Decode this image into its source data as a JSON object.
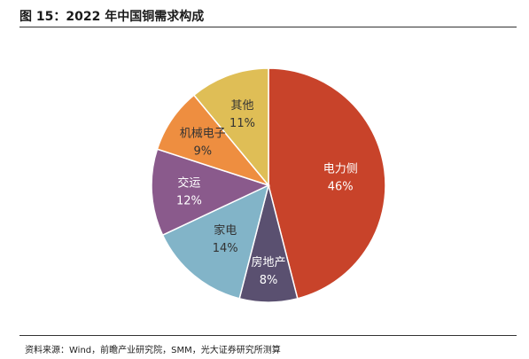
{
  "figure": {
    "title": "图 15：2022 年中国铜需求构成",
    "source": "资料来源：Wind，前瞻产业研究院，SMM，光大证券研究所测算"
  },
  "chart_data": {
    "type": "pie",
    "title": "图 15：2022 年中国铜需求构成",
    "start_angle_deg": 0,
    "direction": "clockwise",
    "slices": [
      {
        "label": "电力侧",
        "value": 46,
        "display": "46%",
        "color": "#c8432a",
        "label_color": "#ffffff"
      },
      {
        "label": "房地产",
        "value": 8,
        "display": "8%",
        "color": "#5a5070",
        "label_color": "#ffffff"
      },
      {
        "label": "家电",
        "value": 14,
        "display": "14%",
        "color": "#82b4c8",
        "label_color": "#333333"
      },
      {
        "label": "交运",
        "value": 12,
        "display": "12%",
        "color": "#8a5a8c",
        "label_color": "#ffffff"
      },
      {
        "label": "机械电子",
        "value": 9,
        "display": "9%",
        "color": "#ee8e40",
        "label_color": "#333333"
      },
      {
        "label": "其他",
        "value": 11,
        "display": "11%",
        "color": "#dfbe56",
        "label_color": "#333333"
      }
    ]
  }
}
